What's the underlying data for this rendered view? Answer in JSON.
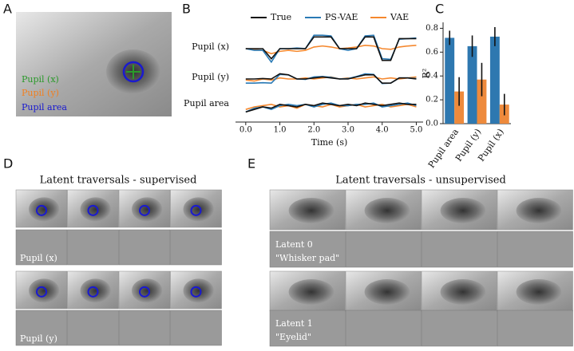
{
  "chart_data": [
    {
      "type": "line",
      "x": [
        0,
        0.25,
        0.5,
        0.75,
        1.0,
        1.25,
        1.5,
        1.75,
        2.0,
        2.25,
        2.5,
        2.75,
        3.0,
        3.25,
        3.5,
        3.75,
        4.0,
        4.25,
        4.5,
        4.75,
        5.0
      ],
      "xlim": [
        -0.3,
        5.2
      ],
      "xticks": [
        {
          "value": 0,
          "label": "0.0"
        },
        {
          "value": 1,
          "label": "1.0"
        },
        {
          "value": 2,
          "label": "2.0"
        },
        {
          "value": 3,
          "label": "3.0"
        },
        {
          "value": 4,
          "label": "4.0"
        },
        {
          "value": 5,
          "label": "5.0"
        }
      ],
      "xlabel": "Time (s)",
      "ylim": [
        0,
        1
      ],
      "row_labels": [
        "Pupil (x)",
        "Pupil (y)",
        "Pupil area"
      ],
      "series": [
        {
          "name": "True",
          "color": "#111111",
          "rows": [
            [
              0.5,
              0.5,
              0.5,
              0.2,
              0.5,
              0.5,
              0.5,
              0.5,
              0.85,
              0.85,
              0.85,
              0.5,
              0.5,
              0.5,
              0.85,
              0.85,
              0.15,
              0.15,
              0.8,
              0.8,
              0.8
            ],
            [
              0.5,
              0.5,
              0.52,
              0.5,
              0.75,
              0.7,
              0.5,
              0.5,
              0.55,
              0.6,
              0.55,
              0.5,
              0.5,
              0.6,
              0.7,
              0.7,
              0.3,
              0.3,
              0.55,
              0.55,
              0.5
            ],
            [
              0.3,
              0.4,
              0.5,
              0.45,
              0.6,
              0.55,
              0.5,
              0.6,
              0.55,
              0.65,
              0.6,
              0.55,
              0.6,
              0.55,
              0.65,
              0.6,
              0.55,
              0.6,
              0.65,
              0.6,
              0.6
            ]
          ]
        },
        {
          "name": "PS-VAE",
          "color": "#2a7ab5",
          "rows": [
            [
              0.5,
              0.45,
              0.45,
              0.1,
              0.5,
              0.5,
              0.52,
              0.5,
              0.9,
              0.9,
              0.88,
              0.5,
              0.45,
              0.5,
              0.88,
              0.9,
              0.2,
              0.18,
              0.78,
              0.8,
              0.82
            ],
            [
              0.3,
              0.3,
              0.32,
              0.3,
              0.72,
              0.7,
              0.5,
              0.48,
              0.6,
              0.62,
              0.58,
              0.5,
              0.52,
              0.62,
              0.75,
              0.72,
              0.28,
              0.3,
              0.55,
              0.55,
              0.52
            ],
            [
              0.3,
              0.45,
              0.5,
              0.4,
              0.55,
              0.6,
              0.55,
              0.6,
              0.5,
              0.6,
              0.65,
              0.55,
              0.55,
              0.6,
              0.6,
              0.65,
              0.5,
              0.55,
              0.6,
              0.65,
              0.55
            ]
          ]
        },
        {
          "name": "VAE",
          "color": "#f5882e",
          "rows": [
            [
              0.5,
              0.48,
              0.45,
              0.35,
              0.42,
              0.45,
              0.42,
              0.45,
              0.55,
              0.58,
              0.55,
              0.5,
              0.52,
              0.55,
              0.6,
              0.58,
              0.5,
              0.48,
              0.55,
              0.58,
              0.6
            ],
            [
              0.45,
              0.4,
              0.5,
              0.45,
              0.55,
              0.5,
              0.5,
              0.55,
              0.5,
              0.55,
              0.6,
              0.5,
              0.55,
              0.5,
              0.55,
              0.6,
              0.5,
              0.55,
              0.5,
              0.55,
              0.6
            ],
            [
              0.4,
              0.5,
              0.55,
              0.6,
              0.5,
              0.55,
              0.45,
              0.6,
              0.55,
              0.5,
              0.6,
              0.5,
              0.55,
              0.6,
              0.5,
              0.55,
              0.6,
              0.5,
              0.55,
              0.6,
              0.5
            ]
          ]
        }
      ]
    },
    {
      "type": "bar",
      "categories": [
        "Pupil area",
        "Pupil (y)",
        "Pupil (x)"
      ],
      "ylabel": "R²",
      "ylim": [
        0,
        0.85
      ],
      "yticks": [
        {
          "value": 0,
          "label": "0.0"
        },
        {
          "value": 0.2,
          "label": "0.2"
        },
        {
          "value": 0.4,
          "label": "0.4"
        },
        {
          "value": 0.6,
          "label": "0.6"
        },
        {
          "value": 0.8,
          "label": "0.8"
        }
      ],
      "series": [
        {
          "name": "PS-VAE",
          "color": "#2e78b0",
          "values": [
            0.72,
            0.65,
            0.73
          ],
          "errors": [
            0.06,
            0.09,
            0.08
          ]
        },
        {
          "name": "VAE",
          "color": "#ee8a3c",
          "values": [
            0.27,
            0.37,
            0.16
          ],
          "errors": [
            0.12,
            0.14,
            0.09
          ]
        }
      ]
    }
  ],
  "panels": {
    "A": {
      "letter": "A",
      "labels": [
        "Pupil (x)",
        "Pupil (y)",
        "Pupil area"
      ]
    },
    "B": {
      "letter": "B"
    },
    "C": {
      "letter": "C"
    },
    "D": {
      "letter": "D",
      "title": "Latent traversals - supervised",
      "labels": [
        "Pupil (x)",
        "Pupil (y)"
      ]
    },
    "E": {
      "letter": "E",
      "title": "Latent traversals - unsupervised",
      "labels": [
        [
          "Latent 0",
          "\"Whisker pad\""
        ],
        [
          "Latent 1",
          "\"Eyelid\""
        ]
      ]
    }
  }
}
